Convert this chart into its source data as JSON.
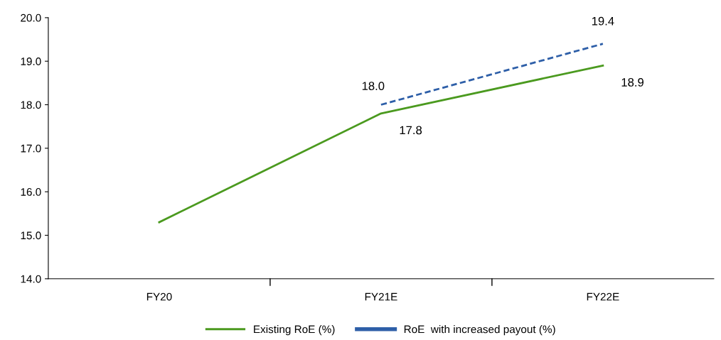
{
  "chart_data": {
    "type": "line",
    "categories": [
      "FY20",
      "FY21E",
      "FY22E"
    ],
    "series": [
      {
        "name": "Existing RoE (%)",
        "color": "#4b9a1f",
        "values": [
          15.3,
          17.8,
          18.9
        ],
        "value_labels": [
          null,
          "17.8",
          "18.9"
        ]
      },
      {
        "name": "RoE  with increased payout (%)",
        "color": "#2e5fa8",
        "values": [
          null,
          18.0,
          19.4
        ],
        "value_labels": [
          null,
          "18.0",
          "19.4"
        ],
        "line_style": "dashed"
      }
    ],
    "ylim": [
      14,
      20
    ],
    "yticks": [
      {
        "value": 14,
        "label": "14.0"
      },
      {
        "value": 15,
        "label": "15.0"
      },
      {
        "value": 16,
        "label": "16.0"
      },
      {
        "value": 17,
        "label": "17.0"
      },
      {
        "value": 18,
        "label": "18.0"
      },
      {
        "value": 19,
        "label": "19.0"
      },
      {
        "value": 20,
        "label": "20.0"
      }
    ],
    "grid": false,
    "legend": "bottom",
    "marker": "none"
  }
}
